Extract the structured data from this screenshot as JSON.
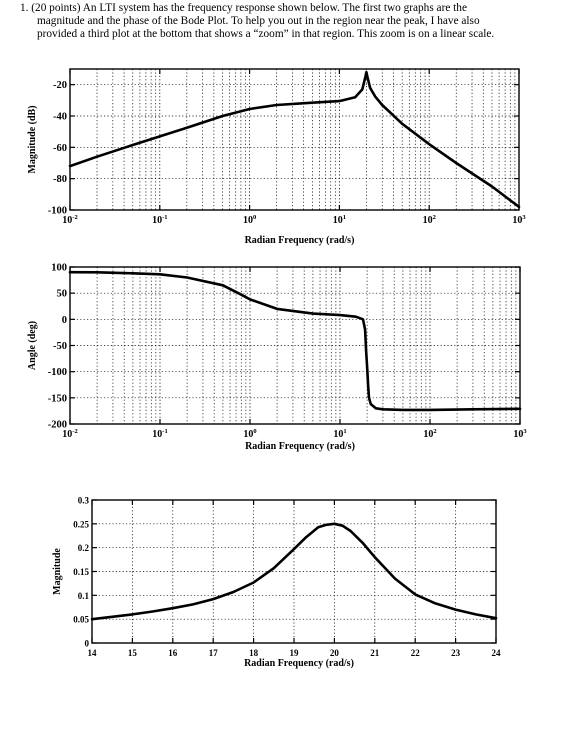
{
  "problem": {
    "lines": [
      "1.   (20 points) An LTI system has the frequency response shown below.  The first two graphs are the",
      "magnitude and the phase of the Bode Plot.  To help you out in the region near the peak, I have also",
      "provided a third plot at the bottom that shows a “zoom” in that region.  This zoom is on a linear scale."
    ]
  },
  "chart_data": [
    {
      "type": "line",
      "xscale": "log",
      "xlim": [
        0.01,
        1000
      ],
      "ylim": [
        -100,
        -10
      ],
      "xlabel": "Radian Frequency (rad/s)",
      "ylabel": "Magnitude (dB)",
      "xticks": [
        0.01,
        0.1,
        1,
        10,
        100,
        1000
      ],
      "xtick_labels": [
        [
          "10",
          "-2"
        ],
        [
          "10",
          "-1"
        ],
        [
          "10",
          "0"
        ],
        [
          "10",
          "1"
        ],
        [
          "10",
          "2"
        ],
        [
          "10",
          "3"
        ]
      ],
      "yticks": [
        -20,
        -40,
        -60,
        -80,
        -100
      ],
      "ytick_labels": [
        "-20",
        "-40",
        "-60",
        "-80",
        "-100"
      ],
      "grid": true,
      "series": [
        {
          "x": [
            0.01,
            0.02,
            0.05,
            0.1,
            0.2,
            0.5,
            1,
            2,
            5,
            10,
            15,
            18,
            19.5,
            20,
            20.5,
            22,
            25,
            30,
            50,
            100,
            200,
            500,
            1000
          ],
          "y": [
            -72,
            -66,
            -58.5,
            -53,
            -47.5,
            -40,
            -35.5,
            -33,
            -31.5,
            -30.5,
            -28,
            -23,
            -15,
            -12,
            -15,
            -22,
            -27.5,
            -33,
            -45,
            -58,
            -70,
            -85,
            -98
          ]
        }
      ]
    },
    {
      "type": "line",
      "xscale": "log",
      "xlim": [
        0.01,
        1000
      ],
      "ylim": [
        -200,
        100
      ],
      "xlabel": "Radian Frequency (rad/s)",
      "ylabel": "Angle (deg)",
      "xticks": [
        0.01,
        0.1,
        1,
        10,
        100,
        1000
      ],
      "xtick_labels": [
        [
          "10",
          "-2"
        ],
        [
          "10",
          "-1"
        ],
        [
          "10",
          "0"
        ],
        [
          "10",
          "1"
        ],
        [
          "10",
          "2"
        ],
        [
          "10",
          "3"
        ]
      ],
      "yticks": [
        100,
        50,
        0,
        -50,
        -100,
        -150,
        -200
      ],
      "ytick_labels": [
        "100",
        "50",
        "0",
        "-50",
        "-100",
        "-150",
        "-200"
      ],
      "grid": true,
      "series": [
        {
          "x": [
            0.01,
            0.02,
            0.05,
            0.1,
            0.2,
            0.5,
            0.8,
            1,
            2,
            5,
            10,
            15,
            18,
            19,
            19.5,
            20,
            20.5,
            21,
            22,
            25,
            30,
            50,
            100,
            300,
            1000
          ],
          "y": [
            90,
            89.8,
            88,
            86,
            80,
            65,
            47,
            38,
            20,
            11,
            8,
            5,
            0,
            -20,
            -60,
            -90,
            -125,
            -150,
            -162,
            -170,
            -172,
            -173,
            -173,
            -172,
            -171
          ]
        }
      ]
    },
    {
      "type": "line",
      "xscale": "linear",
      "xlim": [
        14,
        24
      ],
      "ylim": [
        0,
        0.3
      ],
      "xlabel": "Radian Frequency (rad/s)",
      "ylabel": "Magnitude",
      "xticks": [
        14,
        15,
        16,
        17,
        18,
        19,
        20,
        21,
        22,
        23,
        24
      ],
      "xtick_labels": [
        "14",
        "15",
        "16",
        "17",
        "18",
        "19",
        "20",
        "21",
        "22",
        "23",
        "24"
      ],
      "yticks": [
        0,
        0.05,
        0.1,
        0.15,
        0.2,
        0.25,
        0.3
      ],
      "ytick_labels": [
        "0",
        "0.05",
        "0.1",
        "0.15",
        "0.2",
        "0.25",
        "0.3"
      ],
      "grid": true,
      "series": [
        {
          "x": [
            14,
            14.5,
            15,
            15.5,
            16,
            16.5,
            17,
            17.5,
            18,
            18.5,
            19,
            19.3,
            19.6,
            19.8,
            20,
            20.2,
            20.4,
            20.7,
            21,
            21.5,
            22,
            22.5,
            23,
            23.5,
            24
          ],
          "y": [
            0.05,
            0.055,
            0.06,
            0.066,
            0.073,
            0.081,
            0.092,
            0.107,
            0.127,
            0.157,
            0.197,
            0.222,
            0.243,
            0.248,
            0.25,
            0.246,
            0.235,
            0.21,
            0.18,
            0.135,
            0.102,
            0.083,
            0.07,
            0.06,
            0.052
          ]
        }
      ]
    }
  ]
}
